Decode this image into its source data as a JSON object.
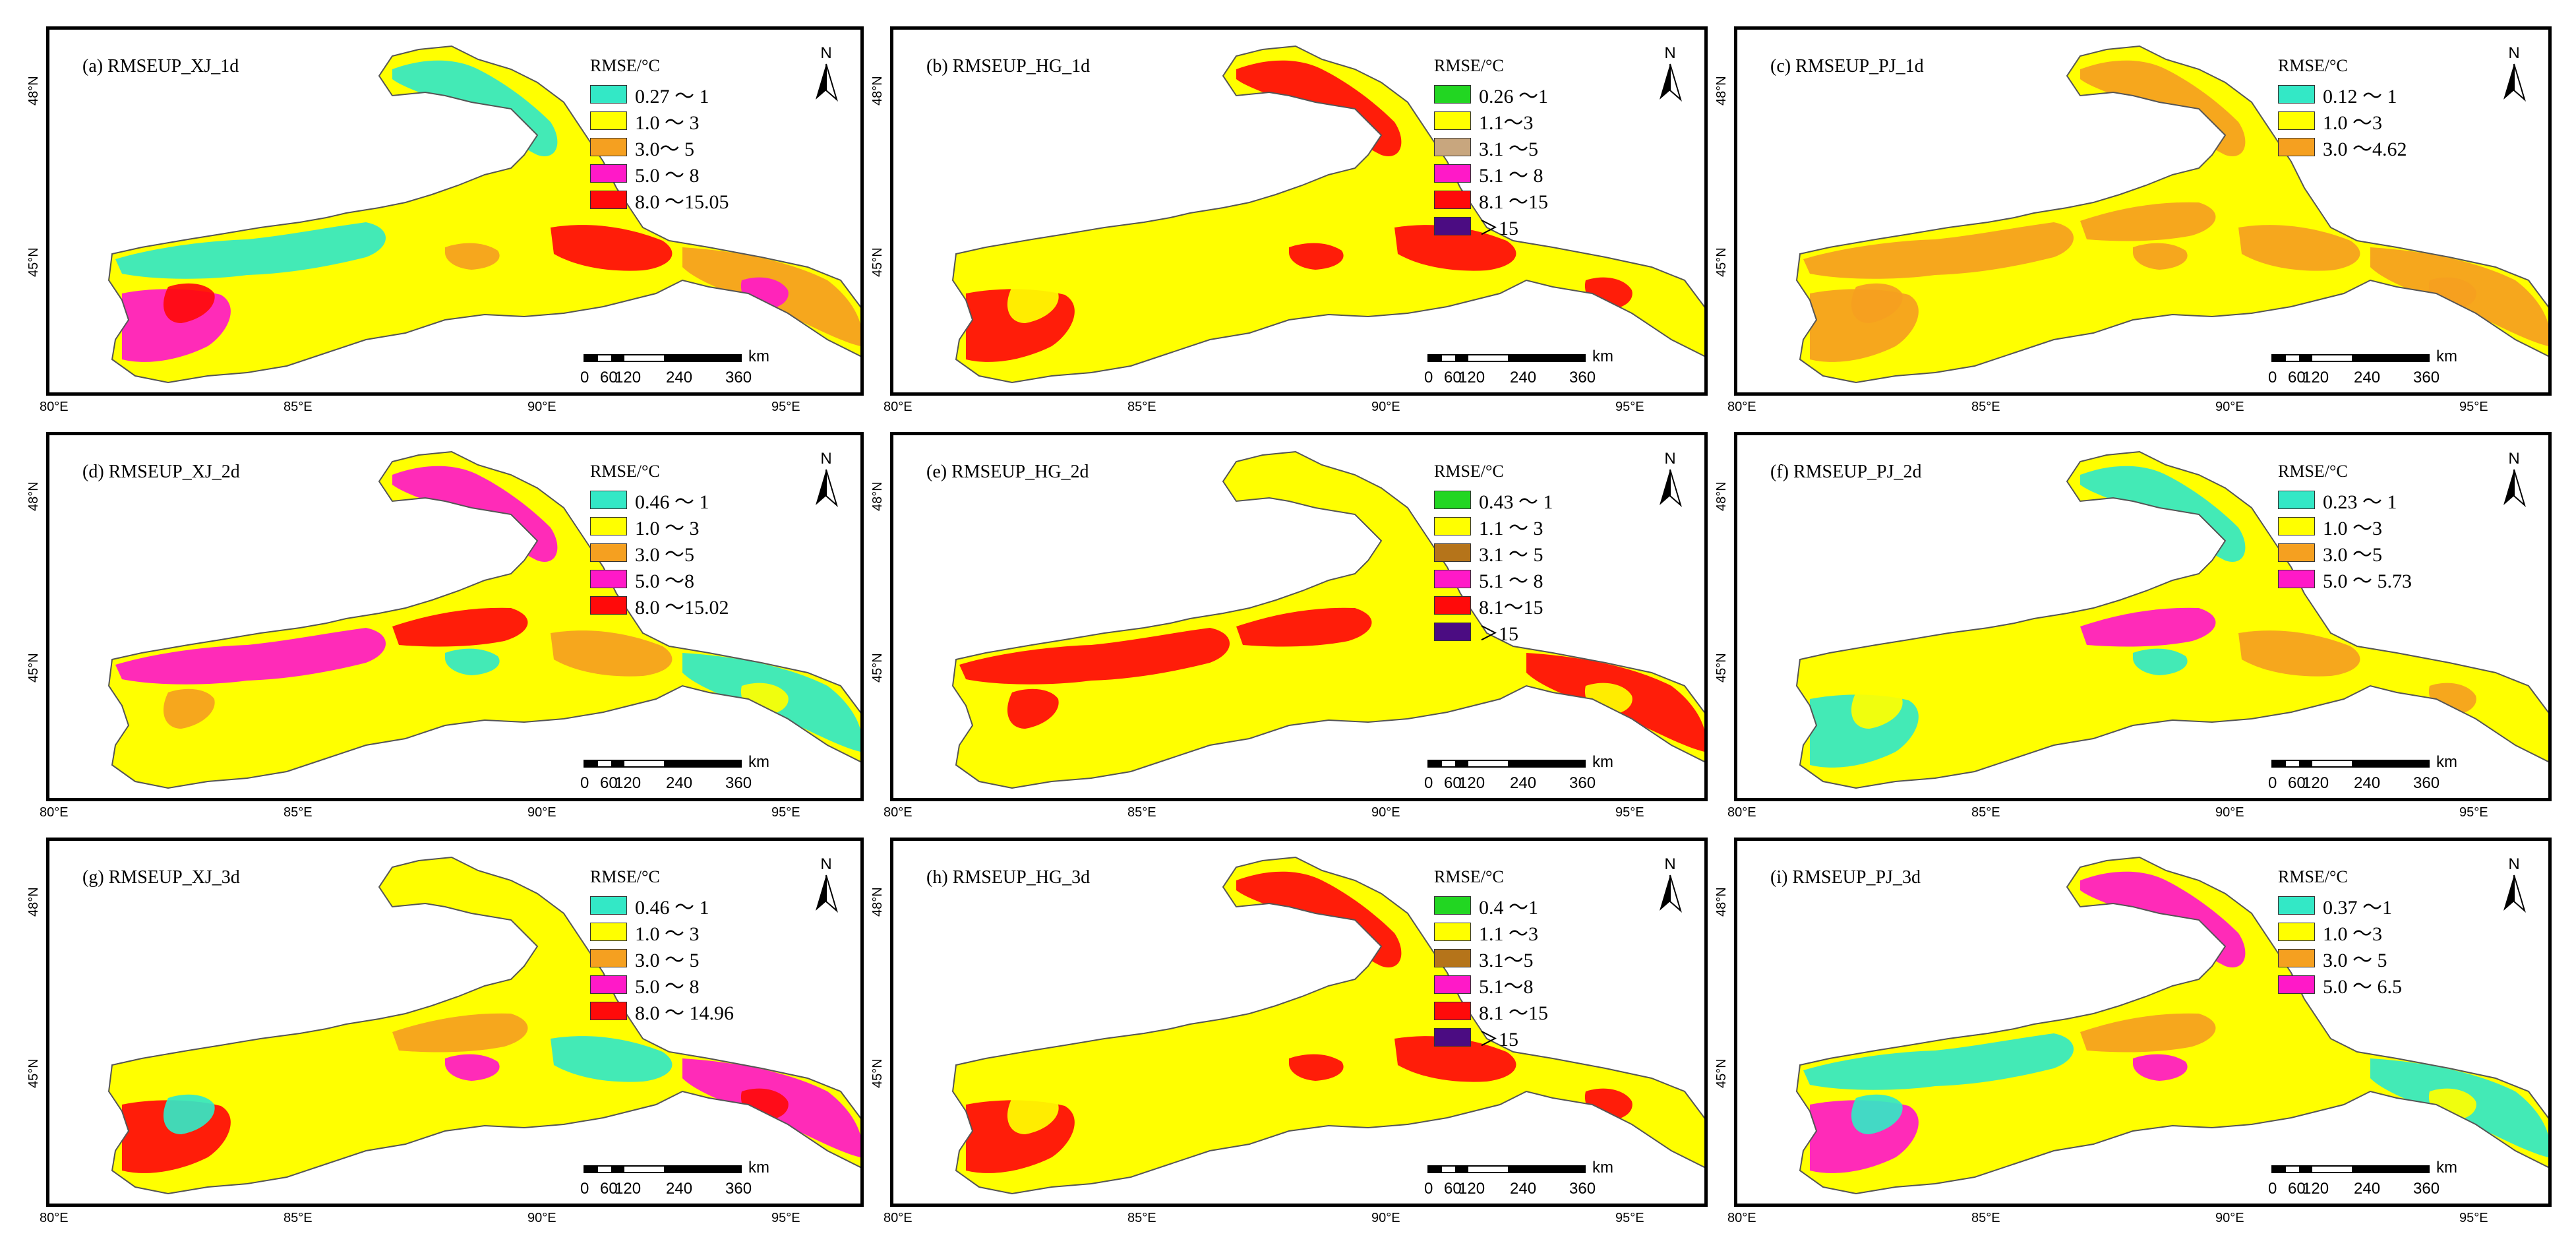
{
  "figure": "RMSE spatial distribution maps",
  "north_label": "N",
  "legend_title": "RMSE/°C",
  "scale": {
    "ticks": [
      "0",
      "60",
      "120",
      "240",
      "360"
    ],
    "unit": "km"
  },
  "lat_labels": [
    "48°N",
    "45°N"
  ],
  "lon_labels": [
    "80°E",
    "85°E",
    "90°E",
    "95°E"
  ],
  "colors": {
    "cyan": "#33e8c6",
    "green": "#22d622",
    "yellow": "#ffff00",
    "tan": "#c8a67e",
    "orange": "#f5a020",
    "brown": "#b5741a",
    "magenta": "#ff19c8",
    "red": "#ff0a0a",
    "purple": "#4b0c82"
  },
  "panels": [
    {
      "title": "(a) RMSEUP_XJ_1d",
      "legend": [
        {
          "label": "0.27 ～ 1",
          "color": "cyan"
        },
        {
          "label": "1.0 ～ 3",
          "color": "yellow"
        },
        {
          "label": "3.0～ 5",
          "color": "orange"
        },
        {
          "label": "5.0 ～ 8",
          "color": "magenta"
        },
        {
          "label": "8.0 ～15.05",
          "color": "red"
        }
      ]
    },
    {
      "title": "(b) RMSEUP_HG_1d",
      "legend": [
        {
          "label": "0.26 ～1",
          "color": "green"
        },
        {
          "label": "1.1～3",
          "color": "yellow"
        },
        {
          "label": "3.1 ～5",
          "color": "tan"
        },
        {
          "label": "5.1 ～ 8",
          "color": "magenta"
        },
        {
          "label": "8.1 ～15",
          "color": "red"
        },
        {
          "label": "＞15",
          "color": "purple"
        }
      ]
    },
    {
      "title": "(c) RMSEUP_PJ_1d",
      "legend": [
        {
          "label": "0.12 ～ 1",
          "color": "cyan"
        },
        {
          "label": "1.0 ～3",
          "color": "yellow"
        },
        {
          "label": "3.0 ～4.62",
          "color": "orange"
        }
      ]
    },
    {
      "title": "(d) RMSEUP_XJ_2d",
      "legend": [
        {
          "label": "0.46 ～ 1",
          "color": "cyan"
        },
        {
          "label": "1.0 ～ 3",
          "color": "yellow"
        },
        {
          "label": "3.0 ～5",
          "color": "orange"
        },
        {
          "label": "5.0 ～8",
          "color": "magenta"
        },
        {
          "label": "8.0 ～15.02",
          "color": "red"
        }
      ]
    },
    {
      "title": "(e) RMSEUP_HG_2d",
      "legend": [
        {
          "label": "0.43 ～ 1",
          "color": "green"
        },
        {
          "label": "1.1 ～ 3",
          "color": "yellow"
        },
        {
          "label": "3.1 ～ 5",
          "color": "brown"
        },
        {
          "label": "5.1 ～ 8",
          "color": "magenta"
        },
        {
          "label": "8.1～15",
          "color": "red"
        },
        {
          "label": "＞15",
          "color": "purple"
        }
      ]
    },
    {
      "title": "(f) RMSEUP_PJ_2d",
      "legend": [
        {
          "label": "0.23 ～ 1",
          "color": "cyan"
        },
        {
          "label": "1.0 ～3",
          "color": "yellow"
        },
        {
          "label": "3.0 ～5",
          "color": "orange"
        },
        {
          "label": "5.0 ～ 5.73",
          "color": "magenta"
        }
      ]
    },
    {
      "title": "(g) RMSEUP_XJ_3d",
      "legend": [
        {
          "label": "0.46 ～ 1",
          "color": "cyan"
        },
        {
          "label": "1.0 ～ 3",
          "color": "yellow"
        },
        {
          "label": "3.0 ～ 5",
          "color": "orange"
        },
        {
          "label": "5.0 ～ 8",
          "color": "magenta"
        },
        {
          "label": "8.0 ～ 14.96",
          "color": "red"
        }
      ]
    },
    {
      "title": "(h) RMSEUP_HG_3d",
      "legend": [
        {
          "label": "0.4 ～1",
          "color": "green"
        },
        {
          "label": "1.1 ～3",
          "color": "yellow"
        },
        {
          "label": "3.1～5",
          "color": "brown"
        },
        {
          "label": "5.1～8",
          "color": "magenta"
        },
        {
          "label": "8.1 ～15",
          "color": "red"
        },
        {
          "label": "＞15",
          "color": "purple"
        }
      ]
    },
    {
      "title": "(i) RMSEUP_PJ_3d",
      "legend": [
        {
          "label": "0.37 ～1",
          "color": "cyan"
        },
        {
          "label": "1.0 ～3",
          "color": "yellow"
        },
        {
          "label": "3.0 ～ 5",
          "color": "orange"
        },
        {
          "label": "5.0 ～ 6.5",
          "color": "magenta"
        }
      ]
    }
  ]
}
